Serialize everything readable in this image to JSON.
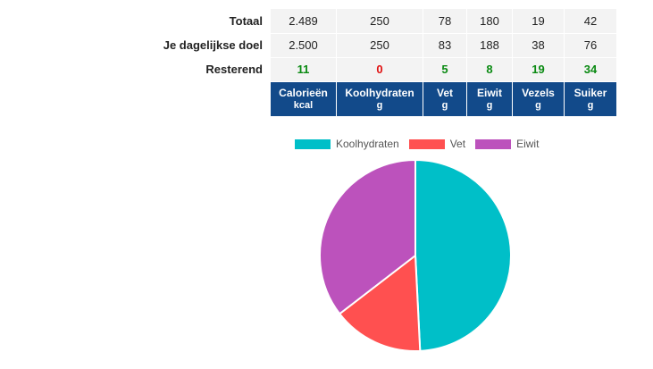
{
  "table": {
    "rows": [
      {
        "label": "Totaal",
        "values": [
          "2.489",
          "250",
          "78",
          "180",
          "19",
          "42"
        ]
      },
      {
        "label": "Je dagelijkse doel",
        "values": [
          "2.500",
          "250",
          "83",
          "188",
          "38",
          "76"
        ]
      },
      {
        "label": "Resterend",
        "values": [
          "11",
          "0",
          "5",
          "8",
          "19",
          "34"
        ]
      }
    ],
    "headers": [
      {
        "name": "Calorieën",
        "unit": "kcal"
      },
      {
        "name": "Koolhydraten",
        "unit": "g"
      },
      {
        "name": "Vet",
        "unit": "g"
      },
      {
        "name": "Eiwit",
        "unit": "g"
      },
      {
        "name": "Vezels",
        "unit": "g"
      },
      {
        "name": "Suiker",
        "unit": "g"
      }
    ],
    "colors": {
      "header_bg": "#124a8a",
      "remaining_positive": "#0a8a12",
      "remaining_zero": "#e01010"
    }
  },
  "chart_data": {
    "type": "pie",
    "categories": [
      "Koolhydraten",
      "Vet",
      "Eiwit"
    ],
    "values": [
      250,
      78,
      180
    ],
    "colors": [
      "#00bfc8",
      "#ff5050",
      "#bc52bc"
    ],
    "legend": "top",
    "start_angle": "top",
    "direction": "clockwise"
  }
}
